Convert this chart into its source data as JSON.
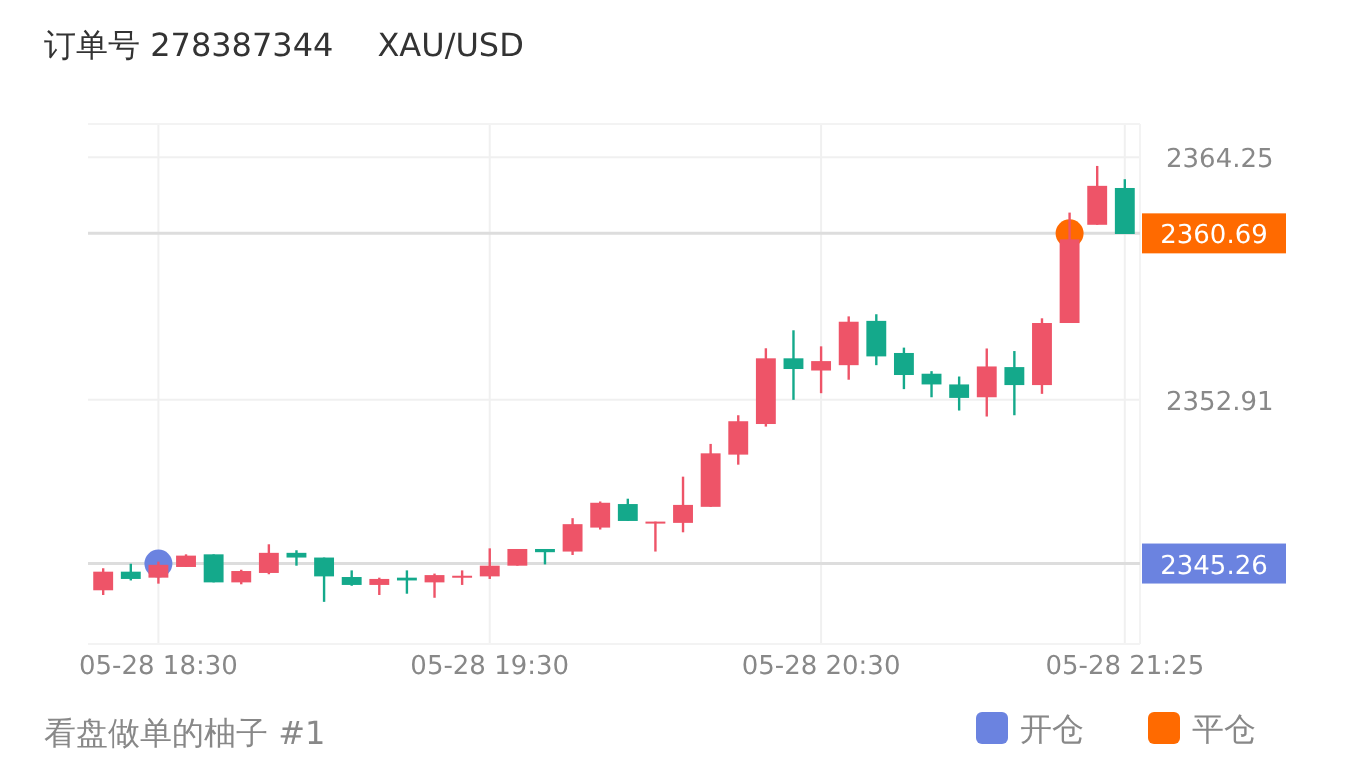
{
  "chart_data": {
    "type": "candlestick",
    "title": "订单号 278387344",
    "subtitle": "XAU/USD",
    "annotations": [
      "看盘做单的柚子 #1"
    ],
    "categories": [
      null,
      null,
      "05-28 18:30",
      null,
      null,
      null,
      null,
      null,
      null,
      null,
      null,
      null,
      null,
      null,
      "05-28 19:30",
      null,
      null,
      null,
      null,
      null,
      null,
      null,
      null,
      null,
      null,
      null,
      "05-28 20:30",
      null,
      null,
      null,
      null,
      null,
      null,
      null,
      null,
      null,
      null,
      "05-28 21:25"
    ],
    "ohlc": [
      [
        2344.01,
        2345.04,
        2343.79,
        2344.88
      ],
      [
        2344.88,
        2345.25,
        2344.47,
        2344.54
      ],
      [
        2344.6,
        2345.35,
        2344.32,
        2345.2
      ],
      [
        2345.1,
        2345.69,
        2345.1,
        2345.63
      ],
      [
        2345.69,
        2345.69,
        2344.38,
        2344.38
      ],
      [
        2344.38,
        2344.97,
        2344.29,
        2344.91
      ],
      [
        2344.82,
        2346.16,
        2344.76,
        2345.76
      ],
      [
        2345.76,
        2345.88,
        2345.16,
        2345.54
      ],
      [
        2345.54,
        2345.54,
        2343.47,
        2344.66
      ],
      [
        2344.63,
        2344.94,
        2344.22,
        2344.26
      ],
      [
        2344.26,
        2344.6,
        2343.79,
        2344.54
      ],
      [
        2344.6,
        2344.94,
        2343.85,
        2344.47
      ],
      [
        2344.38,
        2344.79,
        2343.66,
        2344.72
      ],
      [
        2344.6,
        2344.94,
        2344.26,
        2344.69
      ],
      [
        2344.66,
        2345.97,
        2344.54,
        2345.16
      ],
      [
        2345.16,
        2345.94,
        2345.16,
        2345.94
      ],
      [
        2345.94,
        2345.94,
        2345.22,
        2345.79
      ],
      [
        2345.82,
        2347.38,
        2345.66,
        2347.1
      ],
      [
        2346.94,
        2348.16,
        2346.85,
        2348.1
      ],
      [
        2348.04,
        2348.29,
        2347.25,
        2347.25
      ],
      [
        2347.13,
        2347.22,
        2345.82,
        2347.22
      ],
      [
        2347.16,
        2349.32,
        2346.72,
        2348
      ],
      [
        2347.91,
        2350.85,
        2347.91,
        2350.41
      ],
      [
        2350.35,
        2352.19,
        2349.88,
        2351.91
      ],
      [
        2351.78,
        2355.32,
        2351.66,
        2354.85
      ],
      [
        2354.85,
        2356.16,
        2352.91,
        2354.35
      ],
      [
        2354.28,
        2355.41,
        2353.22,
        2354.72
      ],
      [
        2354.53,
        2356.81,
        2353.85,
        2356.56
      ],
      [
        2356.6,
        2356.91,
        2354.53,
        2354.94
      ],
      [
        2355.1,
        2355.35,
        2353.41,
        2354.07
      ],
      [
        2354.13,
        2354.25,
        2353.03,
        2353.63
      ],
      [
        2353.63,
        2354,
        2352.41,
        2353
      ],
      [
        2353.03,
        2355.31,
        2352.13,
        2354.47
      ],
      [
        2354.44,
        2355.19,
        2352.19,
        2353.6
      ],
      [
        2353.6,
        2356.72,
        2353.19,
        2356.5
      ],
      [
        2356.5,
        2361.66,
        2356.5,
        2360.41
      ],
      [
        2361.09,
        2363.84,
        2361.09,
        2362.91
      ],
      [
        2362.81,
        2363.22,
        2360.66,
        2360.66
      ]
    ],
    "colors": [
      "#ee5468",
      "#14a98b",
      "#ee5468",
      "#ee5468",
      "#14a98b",
      "#ee5468",
      "#ee5468",
      "#14a98b",
      "#14a98b",
      "#14a98b",
      "#ee5468",
      "#14a98b",
      "#ee5468",
      "#ee5468",
      "#ee5468",
      "#ee5468",
      "#14a98b",
      "#ee5468",
      "#ee5468",
      "#14a98b",
      "#ee5468",
      "#ee5468",
      "#ee5468",
      "#ee5468",
      "#ee5468",
      "#14a98b",
      "#ee5468",
      "#ee5468",
      "#14a98b",
      "#14a98b",
      "#14a98b",
      "#14a98b",
      "#ee5468",
      "#14a98b",
      "#ee5468",
      "#ee5468",
      "#ee5468",
      "#14a98b"
    ],
    "series": [
      {
        "type": "scatter",
        "name": "开仓",
        "color": "#6b83e0",
        "values": [
          null,
          null,
          2345.26,
          null,
          null,
          null,
          null,
          null,
          null,
          null,
          null,
          null,
          null,
          null,
          null,
          null,
          null,
          null,
          null,
          null,
          null,
          null,
          null,
          null,
          null,
          null,
          null,
          null,
          null,
          null,
          null,
          null,
          null,
          null,
          null,
          null,
          null,
          null
        ]
      },
      {
        "type": "scatter",
        "name": "平仓",
        "color": "#ff6a00",
        "values": [
          null,
          null,
          null,
          null,
          null,
          null,
          null,
          null,
          null,
          null,
          null,
          null,
          null,
          null,
          null,
          null,
          null,
          null,
          null,
          null,
          null,
          null,
          null,
          null,
          null,
          null,
          null,
          null,
          null,
          null,
          null,
          null,
          null,
          null,
          null,
          2360.69,
          null,
          null
        ]
      }
    ],
    "ref_lines": [
      {
        "axis": "y",
        "value": 2345.26,
        "label": "2345.26",
        "color": "#dddddd"
      },
      {
        "axis": "y",
        "value": 2360.69,
        "label": "2360.69",
        "color": "#dddddd"
      }
    ],
    "ylim": [
      2341.5,
      2365.8
    ],
    "yticks": [
      2364.25,
      2352.91
    ],
    "grid": true,
    "legend": "bottom right",
    "marker": "circle"
  }
}
